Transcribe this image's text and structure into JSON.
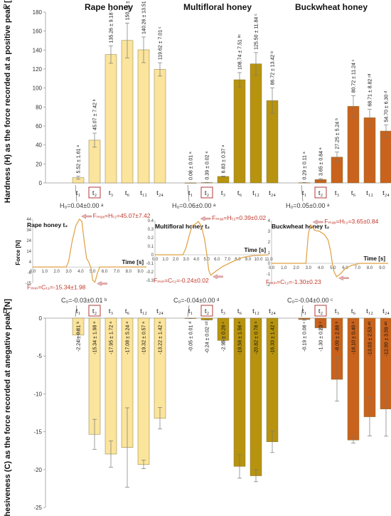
{
  "chart_data": [
    {
      "type": "bar",
      "panel": "a",
      "ylabel": "Hardness (H) as the force recorded at a positive peak [N]",
      "ylim": [
        0,
        180
      ],
      "yticks": [
        0,
        20,
        40,
        60,
        80,
        100,
        120,
        140,
        160,
        180
      ],
      "groups": [
        {
          "name": "Rape honey",
          "color": "#fbe49b",
          "control": "H₀=0.04±0.00 ᵃ",
          "categories": [
            "t₁",
            "t₂",
            "t₃",
            "t₆",
            "t₁₂",
            "t₂₄"
          ],
          "values": [
            5.52,
            45.07,
            135.26,
            150.14,
            140.26,
            119.62
          ],
          "errors": [
            1.61,
            7.42,
            9.18,
            18.35,
            13.51,
            7.01
          ],
          "labels": [
            "5.52 ± 1.61 ᵃ",
            "45.07 ± 7.42 ᵇ",
            "135.26 ± 9.18 ᶜ",
            "150.14 ± 18.35 ᶜ",
            "140.26 ± 13.51 ᶜ",
            "119.62 ± 7.01 ᶜ"
          ]
        },
        {
          "name": "Multifloral honey",
          "color": "#b7930f",
          "control": "H₀=0.06±0.00 ᵃ",
          "categories": [
            "t₁",
            "t₂",
            "t₃",
            "t₆",
            "t₁₂",
            "t₂₄"
          ],
          "values": [
            0.08,
            0.39,
            6.83,
            108.74,
            125.5,
            86.72
          ],
          "errors": [
            0.01,
            0.02,
            0.37,
            7.51,
            11.84,
            13.42
          ],
          "labels": [
            "0.08 ± 0.01 ᵃ",
            "0.39 ± 0.02 ᵃ",
            "6.83 ± 0.37 ᵃ",
            "108.74 ± 7.51 ᵇᶜ",
            "125.50 ± 11.84 ᶜ",
            "86.72 ± 13.42 ᵇ"
          ]
        },
        {
          "name": "Buckwheat honey",
          "color": "#c8621c",
          "control": "H₀=0.05±0.00 ᵃ",
          "categories": [
            "t₁",
            "t₂",
            "t₃",
            "t₆",
            "t₁₂",
            "t₂₄"
          ],
          "values": [
            0.29,
            3.65,
            27.25,
            80.72,
            68.71,
            54.7
          ],
          "errors": [
            0.11,
            0.84,
            5.24,
            11.24,
            8.82,
            6.3
          ],
          "labels": [
            "0.29 ± 0.11 ᵃ",
            "3.65 ± 0.84 ᵃ",
            "27.25 ± 5.24 ᵇ",
            "80.72 ± 11.24 ᶜ",
            "68.71 ± 8.82 ᶜᵈ",
            "54.70 ± 6.30 ᵈ"
          ]
        }
      ]
    },
    {
      "type": "line",
      "panel": "inset",
      "ylabel": "Force [N]",
      "xlabel": "Time [s]",
      "insets": [
        {
          "title": "Rape honey t₂",
          "xlim": [
            0,
            9.5
          ],
          "xticks": [
            "0.0",
            "1.0",
            "2.0",
            "3.0",
            "4.0",
            "5.0",
            "6.0",
            "7.0",
            "8.0",
            "9.0"
          ],
          "ylim": [
            -15,
            44
          ],
          "yticks": [
            "44",
            "34",
            "24",
            "14",
            "4",
            "-6",
            "-15"
          ],
          "max_label": "Fₘₐₓ=Hₜ₂=45.07±7.42",
          "min_label": "Fₘᵢₙ=Cₜ₂=-15.34±1.98",
          "points": [
            [
              0,
              0
            ],
            [
              2.8,
              0
            ],
            [
              3.0,
              5
            ],
            [
              3.3,
              24
            ],
            [
              3.6,
              38
            ],
            [
              3.9,
              44
            ],
            [
              4.1,
              42
            ],
            [
              4.3,
              24
            ],
            [
              4.5,
              8
            ],
            [
              4.7,
              4
            ],
            [
              4.9,
              -2
            ],
            [
              5.0,
              -12
            ],
            [
              5.2,
              -14
            ],
            [
              5.4,
              -6
            ],
            [
              5.6,
              0
            ],
            [
              9.5,
              0
            ]
          ]
        },
        {
          "title": "Multifloral honey t₂",
          "xlim": [
            0,
            11
          ],
          "xticks": [
            "0.0",
            "1.0",
            "2.0",
            "3.0",
            "4.0",
            "5.0",
            "6.0",
            "7.0",
            "8.0",
            "9.0",
            "10.0",
            "11.0"
          ],
          "ylim": [
            -0.3,
            0.4
          ],
          "yticks": [
            "0.4",
            "0.3",
            "0.2",
            "0.1",
            "0",
            "-0.1",
            "-0.2",
            "-0.3"
          ],
          "max_label": "Fₘₐₓ=Hₜ₂=0.39±0.02",
          "min_label": "Fₘᵢₙ=Cₜ₂=-0.24±0.02",
          "points": [
            [
              0,
              0
            ],
            [
              2.7,
              0
            ],
            [
              3.0,
              0.08
            ],
            [
              3.3,
              0.22
            ],
            [
              3.6,
              0.34
            ],
            [
              3.9,
              0.36
            ],
            [
              4.2,
              0.39
            ],
            [
              4.5,
              0.33
            ],
            [
              4.8,
              0.18
            ],
            [
              5.0,
              0.02
            ],
            [
              5.2,
              -0.18
            ],
            [
              5.4,
              -0.24
            ],
            [
              5.8,
              -0.2
            ],
            [
              6.5,
              -0.14
            ],
            [
              7.5,
              -0.08
            ],
            [
              8.5,
              -0.03
            ],
            [
              9.5,
              -0.01
            ],
            [
              11,
              0
            ]
          ]
        },
        {
          "title": "Buckwheat honey t₂",
          "xlim": [
            0,
            9.5
          ],
          "xticks": [
            "0.0",
            "1.0",
            "2.0",
            "3.0",
            "4.0",
            "5.0",
            "6.0",
            "7.0",
            "8.0",
            "9.0"
          ],
          "ylim": [
            -2,
            4
          ],
          "yticks": [
            "4",
            "3",
            "2",
            "1",
            "0",
            "-1",
            "-2"
          ],
          "max_label": "Fₘₐₓ=Hₜ₂=3.65±0.84",
          "min_label": "Fₘᵢₙ=Cₜ₂=-1.30±0.23",
          "points": [
            [
              0,
              0
            ],
            [
              2.8,
              0
            ],
            [
              3.0,
              2.8
            ],
            [
              3.2,
              3.6
            ],
            [
              3.5,
              3.1
            ],
            [
              3.9,
              3.0
            ],
            [
              4.3,
              2.7
            ],
            [
              4.6,
              2.2
            ],
            [
              4.8,
              1.2
            ],
            [
              4.95,
              0
            ],
            [
              5.1,
              -0.8
            ],
            [
              5.3,
              -1.25
            ],
            [
              5.6,
              -1.0
            ],
            [
              6.0,
              -0.5
            ],
            [
              6.5,
              -0.2
            ],
            [
              7.2,
              0
            ],
            [
              9.5,
              0
            ]
          ]
        }
      ]
    },
    {
      "type": "bar",
      "panel": "b",
      "ylabel": "Cohesiveness (C) as the force recorded at anegative peak [N]",
      "ylim": [
        -25,
        0
      ],
      "yticks": [
        0,
        -5,
        -10,
        -15,
        -20,
        -25
      ],
      "groups": [
        {
          "name": "Rape honey",
          "color": "#fbe49b",
          "control": "C₀=-0.03±0.01 ᵇ",
          "categories": [
            "t₁",
            "t₂",
            "t₃",
            "t₆",
            "t₁₂",
            "t₂₄"
          ],
          "values": [
            -2.24,
            -15.34,
            -17.95,
            -17.08,
            -19.32,
            -13.22
          ],
          "errors": [
            0.61,
            1.98,
            1.72,
            5.24,
            0.57,
            1.42
          ],
          "labels": [
            "-2.24 ± 0.61 ᵇ",
            "-15.34 ± 1.98 ᵃ",
            "-17.95 ± 1.72 ᵃ",
            "-17.08 ± 5.24 ᵃ",
            "-19.32 ± 0.57 ᵃ",
            "-13.22 ± 1.42 ᵃ"
          ]
        },
        {
          "name": "Multifloral honey",
          "color": "#b7930f",
          "control": "C₀=-0.04±0.00 ᵈ",
          "categories": [
            "t₁",
            "t₂",
            "t₃",
            "t₆",
            "t₁₂",
            "t₂₄"
          ],
          "values": [
            -0.05,
            -0.24,
            -2.95,
            -19.58,
            -20.82,
            -16.33
          ],
          "errors": [
            0.01,
            0.02,
            0.26,
            1.56,
            0.78,
            1.42
          ],
          "labels": [
            "-0.05 ± 0.01 ᵈ",
            "-0.24 ± 0.02 ᶜᵈ",
            "-2.95 ± 0.26 ᶜ",
            "-19.58 ± 1.56 ᵃ",
            "-20.82 ± 0.78 ᵃ",
            "-16.33 ± 1.42 ᵇ"
          ]
        },
        {
          "name": "Buckwheat honey",
          "color": "#c8621c",
          "control": "C₀=-0.04±0.00 ᶜ",
          "categories": [
            "t₁",
            "t₂",
            "t₃",
            "t₆",
            "t₁₂",
            "t₂₄"
          ],
          "values": [
            -0.19,
            -1.3,
            -8.09,
            -16.1,
            -13.03,
            -12.0
          ],
          "errors": [
            0.08,
            0.23,
            2.88,
            0.4,
            2.53,
            3.59
          ],
          "labels": [
            "-0.19 ± 0.08 ᶜ",
            "-1.30 ± 0.23 ᶜ",
            "-8.09 ± 2.88 ᵇ",
            "-16.10 ± 0.40 ᵃ",
            "-13.03 ± 2.53 ᵃᵇ",
            "-12.00 ± 3.59 ᵃᵇ"
          ]
        }
      ]
    }
  ]
}
